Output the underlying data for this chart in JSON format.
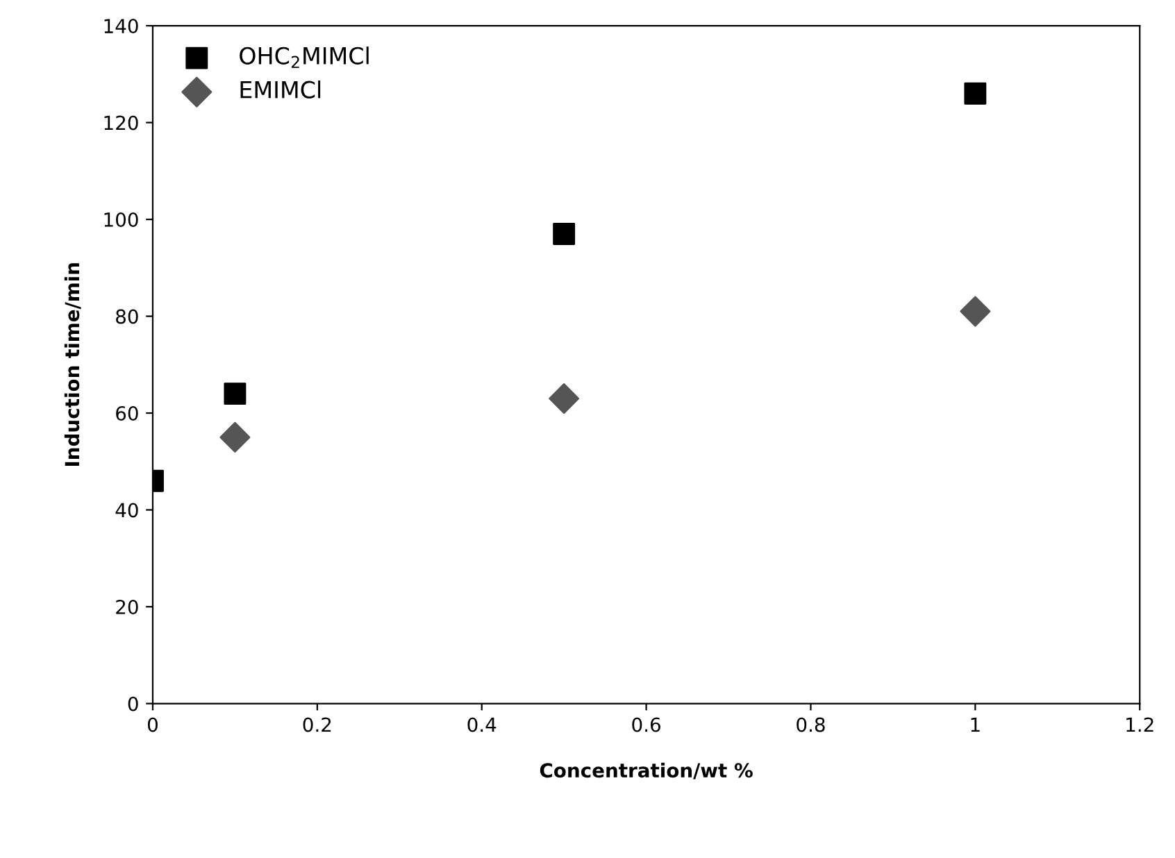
{
  "chart_data": {
    "type": "scatter",
    "xlabel": "Concentration/wt %",
    "ylabel": "Induction time/min",
    "xlim": [
      0,
      1.2
    ],
    "xticks": [
      0,
      0.2,
      0.4,
      0.6,
      0.8,
      1,
      1.2
    ],
    "ylim": [
      0,
      140
    ],
    "yticks": [
      0,
      20,
      40,
      60,
      80,
      100,
      120,
      140
    ],
    "grid": false,
    "legend": "top left",
    "series": [
      {
        "name": "OHC$_{2}$MIMCl",
        "color": "#000000",
        "marker": "square",
        "x": [
          0,
          0.1,
          0.5,
          1
        ],
        "values": [
          46,
          64,
          97,
          126
        ]
      },
      {
        "name": "EMIMCl",
        "color": "#555555",
        "marker": "diamond",
        "x": [
          0.1,
          0.5,
          1
        ],
        "values": [
          55,
          63,
          81
        ]
      }
    ]
  }
}
